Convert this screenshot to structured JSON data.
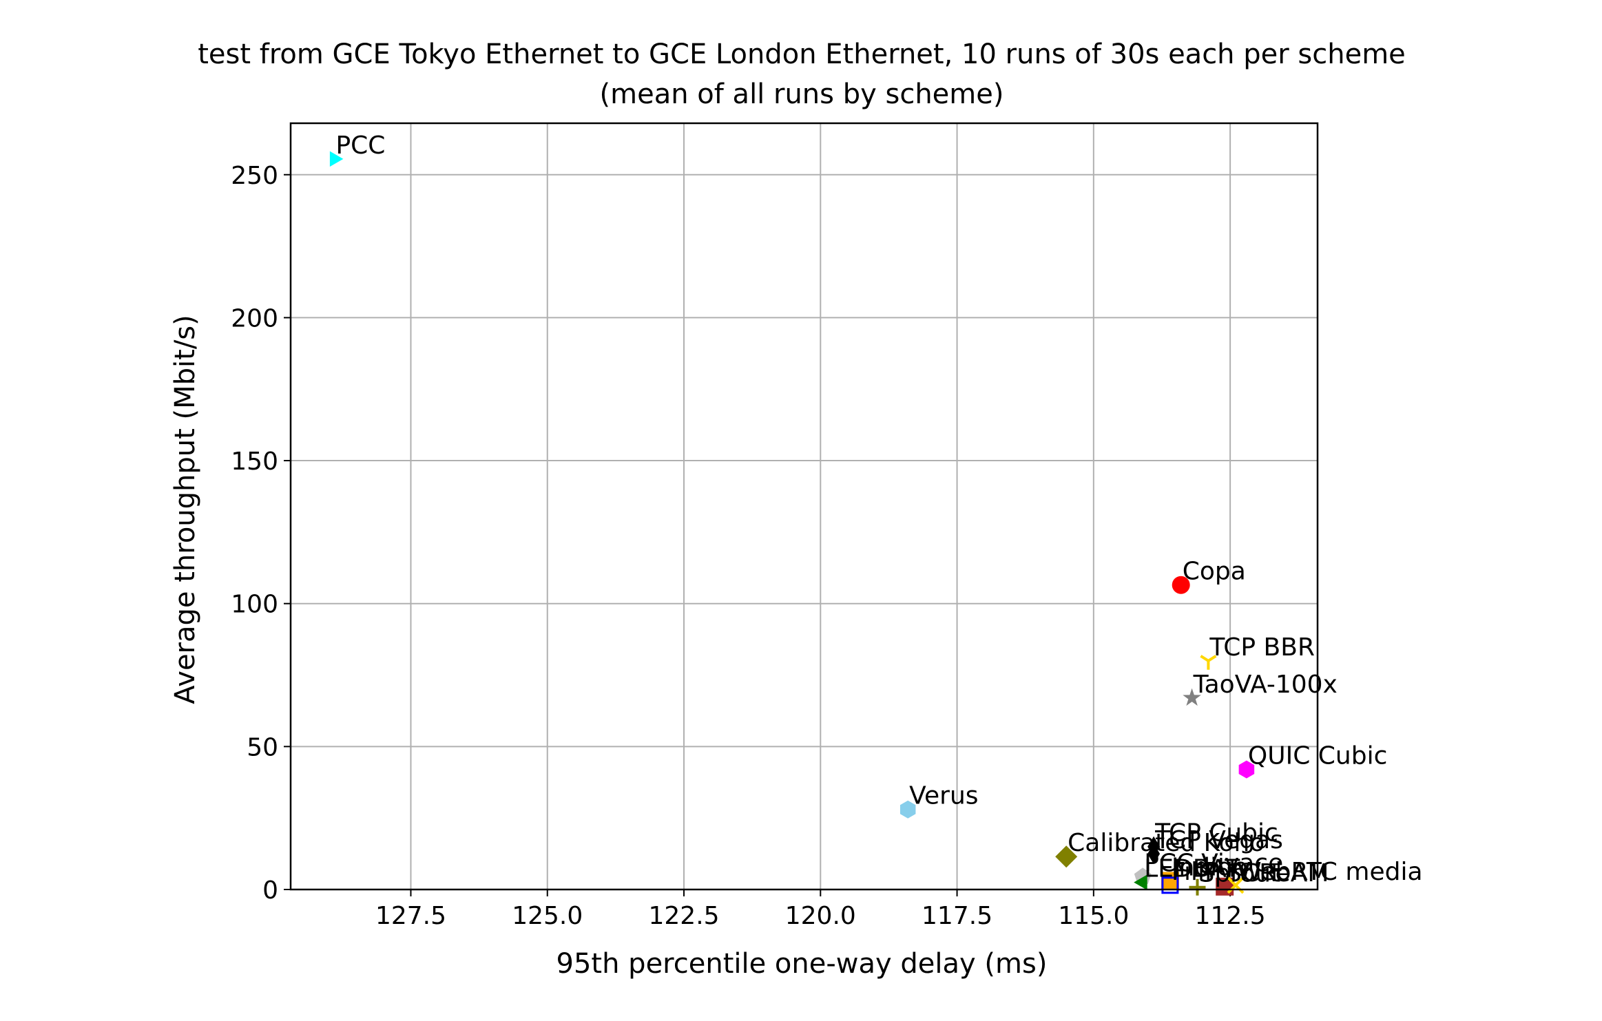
{
  "chart_data": {
    "type": "scatter",
    "title": "test from GCE Tokyo Ethernet to GCE London Ethernet, 10 runs of 30s each per scheme",
    "subtitle": "(mean of all runs by scheme)",
    "xlabel": "95th percentile one-way delay (ms)",
    "ylabel": "Average throughput (Mbit/s)",
    "x_inverted": true,
    "xlim": [
      129.7,
      110.9
    ],
    "ylim": [
      0,
      268
    ],
    "xticks": [
      127.5,
      125.0,
      122.5,
      120.0,
      117.5,
      115.0,
      112.5
    ],
    "xtick_labels": [
      "127.5",
      "125.0",
      "122.5",
      "120.0",
      "117.5",
      "115.0",
      "112.5"
    ],
    "yticks": [
      0,
      50,
      100,
      150,
      200,
      250
    ],
    "ytick_labels": [
      "0",
      "50",
      "100",
      "150",
      "200",
      "250"
    ],
    "grid": true,
    "points": [
      {
        "label": "PCC",
        "x": 128.9,
        "y": 255.5,
        "marker": "triangle-right",
        "color": "#00ffff"
      },
      {
        "label": "Copa",
        "x": 113.4,
        "y": 106.5,
        "marker": "circle",
        "color": "#ff0000"
      },
      {
        "label": "TCP BBR",
        "x": 112.9,
        "y": 80.0,
        "marker": "tri-down",
        "color": "#ffd700"
      },
      {
        "label": "TaoVA-100x",
        "x": 113.2,
        "y": 67.0,
        "marker": "star",
        "color": "#808080"
      },
      {
        "label": "QUIC Cubic",
        "x": 112.2,
        "y": 42.0,
        "marker": "hexagon",
        "color": "#ff00ff"
      },
      {
        "label": "Verus",
        "x": 118.4,
        "y": 28.0,
        "marker": "hexagon",
        "color": "#87ceeb"
      },
      {
        "label": "TCP Cubic",
        "x": 113.9,
        "y": 15.0,
        "marker": "diamond-thin",
        "color": "#000000"
      },
      {
        "label": "Calibrated Koho",
        "x": 115.5,
        "y": 11.5,
        "marker": "diamond",
        "color": "#808000"
      },
      {
        "label": "TCP Vegas",
        "x": 113.9,
        "y": 12.5,
        "marker": "diamond-thin",
        "color": "#000000"
      },
      {
        "label": "PCC-Vivace",
        "x": 114.1,
        "y": 4.5,
        "marker": "pentagon",
        "color": "#c0c0c0"
      },
      {
        "label": "Indigo",
        "x": 113.6,
        "y": 3.0,
        "marker": "square",
        "color": "#ffa500"
      },
      {
        "label": "FillP",
        "x": 113.6,
        "y": 1.5,
        "marker": "square-open",
        "color": "#0000ff"
      },
      {
        "label": "LEDBAT",
        "x": 114.1,
        "y": 2.5,
        "marker": "triangle-left",
        "color": "#008000"
      },
      {
        "label": "SCReAM",
        "x": 112.6,
        "y": 1.0,
        "marker": "square",
        "color": "#a52a2a"
      },
      {
        "label": "WebRTC media",
        "x": 112.4,
        "y": 1.5,
        "marker": "x",
        "color": "#ffd700"
      },
      {
        "label": "Sprout",
        "x": 113.1,
        "y": 0.8,
        "marker": "plus",
        "color": "#808000"
      }
    ]
  }
}
